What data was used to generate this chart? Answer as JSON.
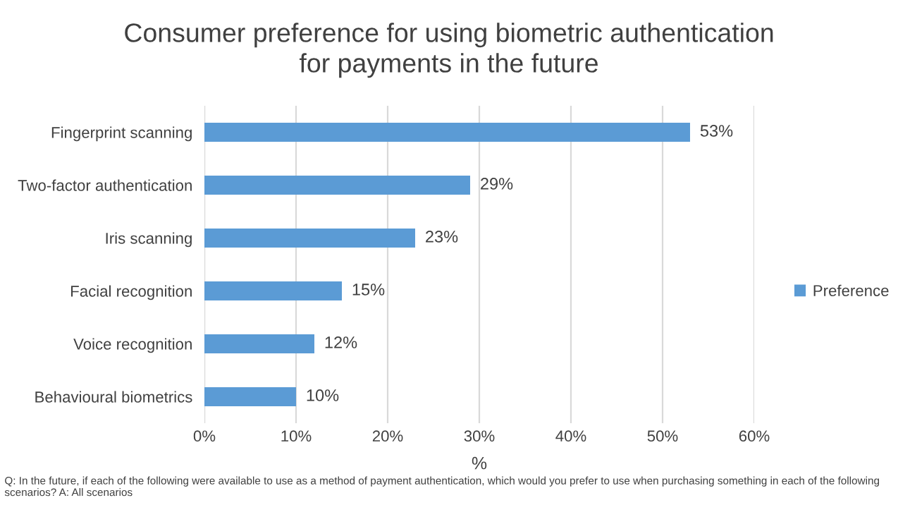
{
  "chart_data": {
    "type": "bar",
    "orientation": "horizontal",
    "title": "Consumer preference for using biometric authentication\nfor payments in the future",
    "categories": [
      "Fingerprint scanning",
      "Two-factor authentication",
      "Iris scanning",
      "Facial recognition",
      "Voice recognition",
      "Behavioural biometrics"
    ],
    "series": [
      {
        "name": "Preference",
        "color": "#5b9bd5",
        "values": [
          53,
          29,
          23,
          15,
          12,
          10
        ],
        "value_labels": [
          "53%",
          "29%",
          "23%",
          "15%",
          "12%",
          "10%"
        ]
      }
    ],
    "xlim": [
      0,
      60
    ],
    "xticks": [
      {
        "value": 0,
        "label": "0%"
      },
      {
        "value": 10,
        "label": "10%"
      },
      {
        "value": 20,
        "label": "20%"
      },
      {
        "value": 30,
        "label": "30%"
      },
      {
        "value": 40,
        "label": "40%"
      },
      {
        "value": 50,
        "label": "50%"
      },
      {
        "value": 60,
        "label": "60%"
      }
    ],
    "xlabel": "%",
    "grid": "x",
    "legend": "right",
    "annotations": [
      "Q: In the future, if each of the following were available to use as a method of payment authentication, which would you prefer to use when purchasing something in each of the following scenarios? A: All scenarios"
    ]
  }
}
